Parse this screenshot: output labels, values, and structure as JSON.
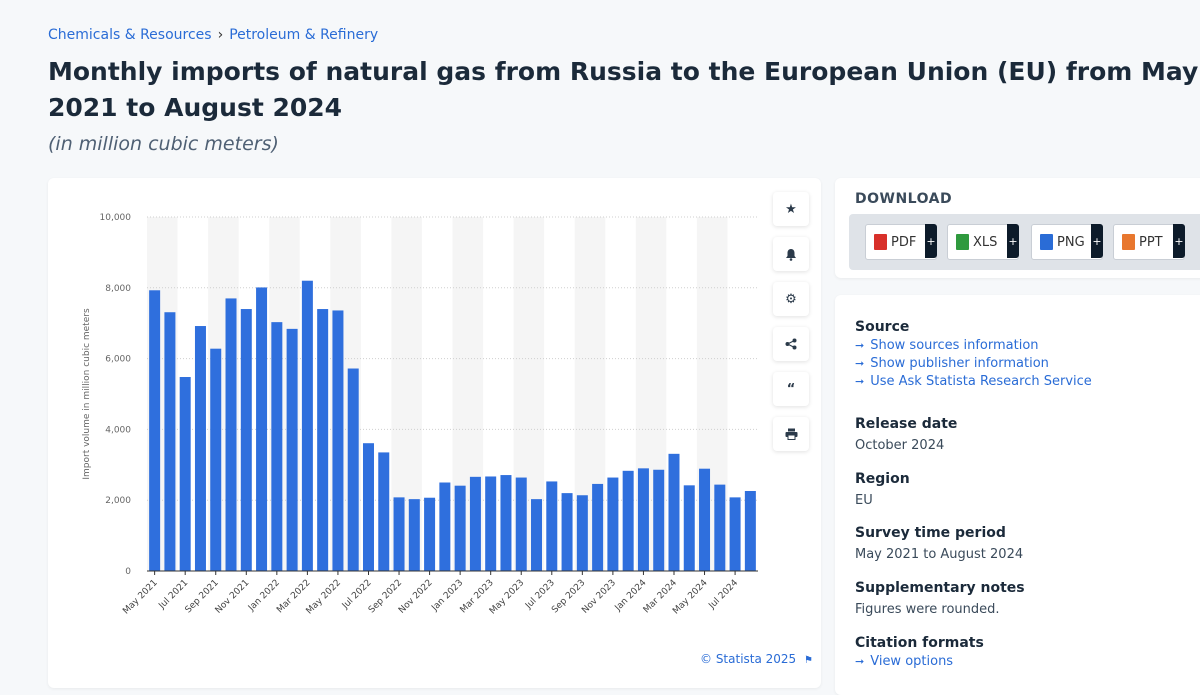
{
  "breadcrumb": {
    "items": [
      "Chemicals & Resources",
      "Petroleum & Refinery"
    ],
    "separator": "›"
  },
  "title": "Monthly imports of natural gas from Russia to the European Union (EU) from May 2021 to August 2024",
  "subtitle": "(in million cubic meters)",
  "chart_data": {
    "type": "bar",
    "title": "Monthly imports of natural gas from Russia to the European Union (EU) from May 2021 to August 2024",
    "xlabel": "",
    "ylabel": "Import volume in million cubic meters",
    "ylim": [
      0,
      10000
    ],
    "yticks": [
      0,
      2000,
      4000,
      6000,
      8000,
      10000
    ],
    "ytick_labels": [
      "0",
      "2,000",
      "4,000",
      "6,000",
      "8,000",
      "10,000"
    ],
    "grid": true,
    "bar_color": "#2f6fdd",
    "categories": [
      "May 2021",
      "Jun 2021",
      "Jul 2021",
      "Aug 2021",
      "Sep 2021",
      "Oct 2021",
      "Nov 2021",
      "Dec 2021",
      "Jan 2022",
      "Feb 2022",
      "Mar 2022",
      "Apr 2022",
      "May 2022",
      "Jun 2022",
      "Jul 2022",
      "Aug 2022",
      "Sep 2022",
      "Oct 2022",
      "Nov 2022",
      "Dec 2022",
      "Jan 2023",
      "Feb 2023",
      "Mar 2023",
      "Apr 2023",
      "May 2023",
      "Jun 2023",
      "Jul 2023",
      "Aug 2023",
      "Sep 2023",
      "Oct 2023",
      "Nov 2023",
      "Dec 2023",
      "Jan 2024",
      "Feb 2024",
      "Mar 2024",
      "Apr 2024",
      "May 2024",
      "Jun 2024",
      "Jul 2024",
      "Aug 2024"
    ],
    "visible_labels": [
      "May 2021",
      "Jul 2021",
      "Sep 2021",
      "Nov 2021",
      "Jan 2022",
      "Mar 2022",
      "May 2022",
      "Jul 2022",
      "Sep 2022",
      "Nov 2022",
      "Jan 2023",
      "Mar 2023",
      "May 2023",
      "Jul 2023",
      "Sep 2023",
      "Nov 2023",
      "Jan 2024",
      "Mar 2024",
      "May 2024",
      "Jul 2024"
    ],
    "values": [
      7930,
      7310,
      5480,
      6920,
      6280,
      7700,
      7400,
      8010,
      7030,
      6840,
      8200,
      7400,
      7360,
      5720,
      3610,
      3350,
      2080,
      2030,
      2070,
      2500,
      2410,
      2660,
      2670,
      2710,
      2640,
      2030,
      2530,
      2200,
      2140,
      2460,
      2640,
      2830,
      2900,
      2860,
      3310,
      2420,
      2890,
      2440,
      2080,
      2260
    ]
  },
  "toolbar": {
    "icons": [
      "star-icon",
      "bell-icon",
      "gear-icon",
      "share-icon",
      "quote-icon",
      "print-icon"
    ]
  },
  "copyright": "© Statista 2025",
  "download": {
    "title": "DOWNLOAD",
    "buttons": [
      {
        "label": "PDF",
        "plus": "+",
        "color": "#d8302a"
      },
      {
        "label": "XLS",
        "plus": "+",
        "color": "#2f9a3e"
      },
      {
        "label": "PNG",
        "plus": "+",
        "color": "#2a6cd6"
      },
      {
        "label": "PPT",
        "plus": "+",
        "color": "#e8772e"
      }
    ]
  },
  "source": {
    "heading": "Source",
    "links": [
      "Show sources information",
      "Show publisher information",
      "Use Ask Statista Research Service"
    ]
  },
  "release": {
    "heading": "Release date",
    "value": "October 2024"
  },
  "region": {
    "heading": "Region",
    "value": "EU"
  },
  "survey": {
    "heading": "Survey time period",
    "value": "May 2021 to August 2024"
  },
  "notes": {
    "heading": "Supplementary notes",
    "value": "Figures were rounded."
  },
  "citation": {
    "heading": "Citation formats",
    "link": "View options"
  }
}
